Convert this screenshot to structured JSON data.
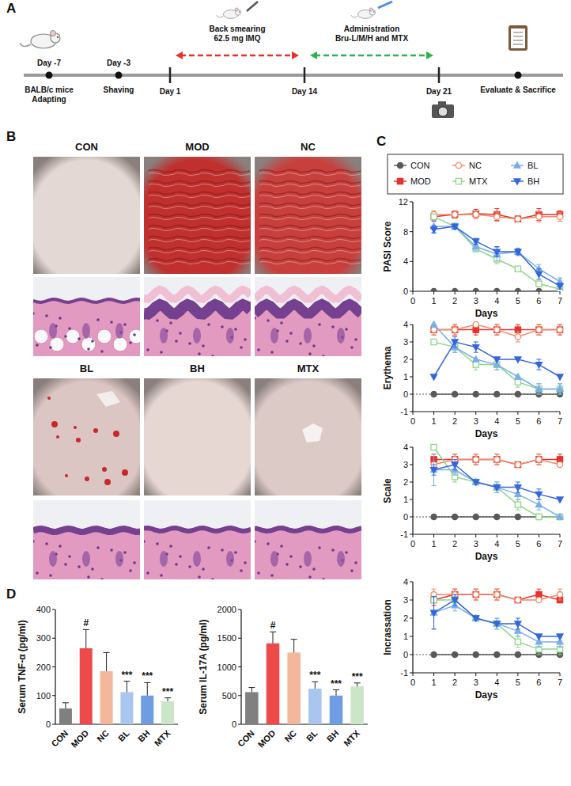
{
  "panels": [
    "A",
    "B",
    "C",
    "D"
  ],
  "timeline": {
    "events": [
      {
        "day": "Day -7",
        "lines": [
          "BALB/c mice",
          "Adapting"
        ]
      },
      {
        "day": "Day -3",
        "lines": [
          "Shaving"
        ]
      },
      {
        "day": "Day 1"
      },
      {
        "day": "Day 14"
      },
      {
        "day": "Day 21"
      },
      {
        "lines": [
          "Evaluate & Sacrifice"
        ]
      }
    ],
    "phases": [
      {
        "lines": [
          "Back smearing",
          "62.5 mg IMQ"
        ],
        "color": "#e8312a"
      },
      {
        "lines": [
          "Administration",
          "Bru-L/M/H and MTX"
        ],
        "color": "#2fb34a"
      }
    ]
  },
  "images": {
    "groups": [
      [
        "CON",
        "MOD",
        "NC"
      ],
      [
        "BL",
        "BH",
        "MTX"
      ]
    ]
  },
  "chart_data": [
    {
      "type": "line",
      "y_label": "PASI Score",
      "x_label": "Days",
      "x": [
        1,
        2,
        3,
        4,
        5,
        6,
        7
      ],
      "xlim": [
        0,
        7
      ],
      "xticks": [
        0,
        1,
        2,
        3,
        4,
        5,
        6,
        7
      ],
      "ylim": [
        0,
        12
      ],
      "yticks": [
        0,
        4,
        8,
        12
      ],
      "legend": "top",
      "series": [
        {
          "name": "CON",
          "color": "#595959",
          "marker": "circle",
          "values": [
            0,
            0,
            0,
            0,
            0,
            0,
            0
          ],
          "errors": [
            0,
            0,
            0,
            0,
            0,
            0,
            0
          ]
        },
        {
          "name": "MOD",
          "color": "#e8302c",
          "marker": "square",
          "values": [
            10.0,
            10.3,
            10.4,
            10.3,
            9.7,
            10.3,
            10.3
          ],
          "errors": [
            0.6,
            0.5,
            0.6,
            0.8,
            0.4,
            0.8,
            0.5
          ]
        },
        {
          "name": "NC",
          "color": "#f08a68",
          "marker": "circle-open",
          "values": [
            10.3,
            10.3,
            10.3,
            10.0,
            9.7,
            10.0,
            10.0
          ],
          "errors": [
            0.5,
            0.5,
            0.5,
            0.6,
            0.3,
            0.7,
            0.6
          ]
        },
        {
          "name": "MTX",
          "color": "#8fd68a",
          "marker": "square-open",
          "values": [
            10.0,
            8.7,
            5.7,
            4.3,
            3.0,
            1.0,
            0.3
          ],
          "errors": [
            0.3,
            0.4,
            0.4,
            0.6,
            0.3,
            0.3,
            0.2
          ]
        },
        {
          "name": "BL",
          "color": "#79aeea",
          "marker": "triangle-up",
          "values": [
            8.7,
            8.7,
            6.0,
            5.0,
            5.3,
            3.0,
            1.3
          ],
          "errors": [
            0.8,
            0.4,
            0.5,
            0.9,
            0.5,
            0.6,
            0.5
          ]
        },
        {
          "name": "BH",
          "color": "#3566dc",
          "marker": "triangle-down",
          "values": [
            8.3,
            8.7,
            6.7,
            5.3,
            5.3,
            2.3,
            0.7
          ],
          "errors": [
            0.5,
            0.3,
            0.4,
            0.7,
            0.4,
            0.7,
            0.4
          ]
        }
      ]
    },
    {
      "type": "line",
      "y_label": "Erythema",
      "x_label": "Days",
      "x": [
        1,
        2,
        3,
        4,
        5,
        6,
        7
      ],
      "xlim": [
        0,
        7
      ],
      "xticks": [
        0,
        1,
        2,
        3,
        4,
        5,
        6,
        7
      ],
      "ylim": [
        -1,
        4
      ],
      "yticks": [
        -1,
        0,
        1,
        2,
        3,
        4
      ],
      "series": [
        {
          "color": "#595959",
          "marker": "circle",
          "values": [
            0,
            0,
            0,
            0,
            0,
            0,
            0
          ],
          "errors": [
            0,
            0,
            0,
            0,
            0,
            0,
            0
          ]
        },
        {
          "color": "#e8302c",
          "marker": "square",
          "values": [
            3.7,
            3.7,
            3.7,
            3.7,
            3.7,
            3.7,
            3.7
          ],
          "errors": [
            0.3,
            0.3,
            0.3,
            0.3,
            0.3,
            0.3,
            0.3
          ]
        },
        {
          "color": "#f08a68",
          "marker": "circle-open",
          "values": [
            3.7,
            3.7,
            4.0,
            3.7,
            3.3,
            3.7,
            3.7
          ],
          "errors": [
            0.3,
            0.3,
            0,
            0.3,
            0.3,
            0.3,
            0.3
          ]
        },
        {
          "color": "#8fd68a",
          "marker": "square-open",
          "values": [
            3.0,
            2.7,
            1.7,
            1.7,
            0.7,
            0.3,
            0.3
          ],
          "errors": [
            0,
            0.3,
            0.3,
            0.3,
            0.3,
            0.3,
            0.3
          ]
        },
        {
          "color": "#79aeea",
          "marker": "triangle-up",
          "values": [
            4.0,
            2.7,
            2.0,
            1.7,
            1.0,
            0.3,
            0.3
          ],
          "errors": [
            0,
            0.3,
            0,
            0.3,
            0,
            0.3,
            0.3
          ]
        },
        {
          "color": "#3566dc",
          "marker": "triangle-down",
          "values": [
            1.0,
            3.0,
            2.7,
            2.0,
            2.0,
            1.7,
            1.0
          ],
          "errors": [
            0,
            0.3,
            0.3,
            0,
            0,
            0.3,
            0
          ]
        }
      ]
    },
    {
      "type": "line",
      "y_label": "Scale",
      "x_label": "Days",
      "x": [
        1,
        2,
        3,
        4,
        5,
        6,
        7
      ],
      "xlim": [
        0,
        7
      ],
      "xticks": [
        0,
        1,
        2,
        3,
        4,
        5,
        6,
        7
      ],
      "ylim": [
        -1,
        4
      ],
      "yticks": [
        -1,
        0,
        1,
        2,
        3,
        4
      ],
      "series": [
        {
          "color": "#595959",
          "marker": "circle",
          "values": [
            0,
            0,
            0,
            0,
            0,
            0,
            0
          ],
          "errors": [
            0,
            0,
            0,
            0,
            0,
            0,
            0
          ]
        },
        {
          "color": "#e8302c",
          "marker": "square",
          "values": [
            3.3,
            3.3,
            3.3,
            3.3,
            3.0,
            3.3,
            3.3
          ],
          "errors": [
            0.3,
            0.3,
            0.3,
            0.3,
            0,
            0.3,
            0.3
          ]
        },
        {
          "color": "#f08a68",
          "marker": "circle-open",
          "values": [
            3.0,
            3.3,
            3.3,
            3.3,
            3.0,
            3.3,
            3.0
          ],
          "errors": [
            0,
            0.3,
            0.3,
            0.3,
            0,
            0.3,
            0
          ]
        },
        {
          "color": "#8fd68a",
          "marker": "square-open",
          "values": [
            4.0,
            2.3,
            2.0,
            1.7,
            0.7,
            0.0,
            0.0
          ],
          "errors": [
            0,
            0.3,
            0,
            0.3,
            0.3,
            0,
            0
          ]
        },
        {
          "color": "#79aeea",
          "marker": "triangle-up",
          "values": [
            2.7,
            2.7,
            2.0,
            1.7,
            1.3,
            0.7,
            0.0
          ],
          "errors": [
            0.9,
            0.3,
            0,
            0.3,
            0.3,
            0.3,
            0
          ]
        },
        {
          "color": "#3566dc",
          "marker": "triangle-down",
          "values": [
            2.7,
            3.0,
            2.0,
            1.7,
            1.7,
            1.3,
            1.0
          ],
          "errors": [
            0.3,
            0.3,
            0,
            0,
            0.3,
            0.3,
            0
          ]
        }
      ]
    },
    {
      "type": "line",
      "y_label": "Incrassation",
      "x_label": "Days",
      "x": [
        1,
        2,
        3,
        4,
        5,
        6,
        7
      ],
      "xlim": [
        0,
        7
      ],
      "xticks": [
        0,
        1,
        2,
        3,
        4,
        5,
        6,
        7
      ],
      "ylim": [
        -1,
        4
      ],
      "yticks": [
        -1,
        0,
        1,
        2,
        3,
        4
      ],
      "series": [
        {
          "color": "#595959",
          "marker": "circle",
          "values": [
            0,
            0,
            0,
            0,
            0,
            0,
            0
          ],
          "errors": [
            0,
            0,
            0,
            0,
            0,
            0,
            0
          ]
        },
        {
          "color": "#e8302c",
          "marker": "square",
          "values": [
            3.0,
            3.3,
            3.3,
            3.3,
            3.0,
            3.3,
            3.0
          ],
          "errors": [
            0.3,
            0.3,
            0.3,
            0.3,
            0,
            0.3,
            0
          ]
        },
        {
          "color": "#f08a68",
          "marker": "circle-open",
          "values": [
            3.3,
            3.3,
            3.3,
            3.3,
            3.0,
            3.0,
            3.3
          ],
          "errors": [
            0.3,
            0.3,
            0.3,
            0.3,
            0,
            0,
            0.3
          ]
        },
        {
          "color": "#8fd68a",
          "marker": "square-open",
          "values": [
            3.0,
            3.0,
            2.0,
            1.7,
            0.7,
            0.3,
            0.3
          ],
          "errors": [
            0,
            0.3,
            0,
            0.3,
            0.3,
            0.3,
            0.3
          ]
        },
        {
          "color": "#79aeea",
          "marker": "triangle-up",
          "values": [
            2.3,
            2.7,
            2.0,
            1.7,
            1.3,
            0.7,
            0.7
          ],
          "errors": [
            0.9,
            0.3,
            0,
            0.3,
            0.3,
            0.3,
            0.3
          ]
        },
        {
          "color": "#3566dc",
          "marker": "triangle-down",
          "values": [
            2.3,
            3.0,
            2.0,
            1.7,
            1.7,
            1.0,
            1.0
          ],
          "errors": [
            0.9,
            0.3,
            0,
            0,
            0.3,
            0,
            0
          ]
        }
      ]
    },
    {
      "type": "bar",
      "y_label": "Serum TNF-α (pg/ml)",
      "categories": [
        "CON",
        "MOD",
        "NC",
        "BL",
        "BH",
        "MTX"
      ],
      "values": [
        55,
        265,
        185,
        112,
        100,
        80
      ],
      "errors": [
        20,
        65,
        65,
        38,
        45,
        12
      ],
      "colors": [
        "#808080",
        "#ee4a4a",
        "#f2b79c",
        "#a9c6ee",
        "#6f9de3",
        "#cbe6c6"
      ],
      "ylim": [
        0,
        400
      ],
      "yticks": [
        0,
        100,
        200,
        300,
        400
      ],
      "annotations": [
        {
          "category": "MOD",
          "text": "#"
        },
        {
          "category": "BL",
          "text": "***"
        },
        {
          "category": "BH",
          "text": "***"
        },
        {
          "category": "MTX",
          "text": "***"
        }
      ]
    },
    {
      "type": "bar",
      "y_label": "Serum IL-17A (pg/ml)",
      "categories": [
        "CON",
        "MOD",
        "NC",
        "BL",
        "BH",
        "MTX"
      ],
      "values": [
        560,
        1410,
        1250,
        620,
        500,
        660
      ],
      "errors": [
        80,
        200,
        230,
        120,
        100,
        60
      ],
      "colors": [
        "#808080",
        "#ee4a4a",
        "#f2b79c",
        "#a9c6ee",
        "#6f9de3",
        "#cbe6c6"
      ],
      "ylim": [
        0,
        2000
      ],
      "yticks": [
        0,
        500,
        1000,
        1500,
        2000
      ],
      "annotations": [
        {
          "category": "MOD",
          "text": "#"
        },
        {
          "category": "BL",
          "text": "***"
        },
        {
          "category": "BH",
          "text": "***"
        },
        {
          "category": "MTX",
          "text": "***"
        }
      ]
    }
  ]
}
